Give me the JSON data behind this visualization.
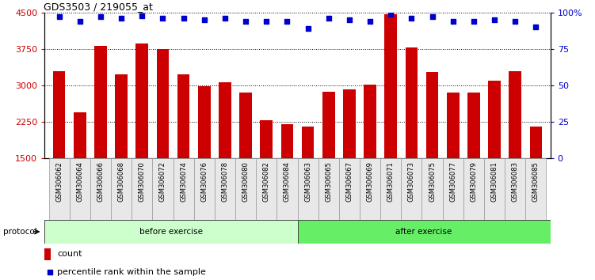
{
  "title": "GDS3503 / 219055_at",
  "categories": [
    "GSM306062",
    "GSM306064",
    "GSM306066",
    "GSM306068",
    "GSM306070",
    "GSM306072",
    "GSM306074",
    "GSM306076",
    "GSM306078",
    "GSM306080",
    "GSM306082",
    "GSM306084",
    "GSM306063",
    "GSM306065",
    "GSM306067",
    "GSM306069",
    "GSM306071",
    "GSM306073",
    "GSM306075",
    "GSM306077",
    "GSM306079",
    "GSM306081",
    "GSM306083",
    "GSM306085"
  ],
  "bar_values": [
    3300,
    2450,
    3820,
    3230,
    3870,
    3750,
    3230,
    2980,
    3070,
    2850,
    2280,
    2200,
    2150,
    2870,
    2920,
    3020,
    4470,
    3780,
    3280,
    2850,
    2850,
    3090,
    3290,
    2160
  ],
  "percentile_values": [
    97,
    94,
    97,
    96,
    98,
    96,
    96,
    95,
    96,
    94,
    94,
    94,
    89,
    96,
    95,
    94,
    99,
    96,
    97,
    94,
    94,
    95,
    94,
    90
  ],
  "bar_color": "#cc0000",
  "percentile_color": "#0000cc",
  "ylim_left": [
    1500,
    4500
  ],
  "ylim_right": [
    0,
    100
  ],
  "yticks_left": [
    1500,
    2250,
    3000,
    3750,
    4500
  ],
  "yticks_right": [
    0,
    25,
    50,
    75,
    100
  ],
  "before_count": 12,
  "after_count": 12,
  "group_before_label": "before exercise",
  "group_after_label": "after exercise",
  "protocol_label": "protocol",
  "legend_count_label": "count",
  "legend_percentile_label": "percentile rank within the sample",
  "before_color": "#ccffcc",
  "after_color": "#66ee66",
  "bar_width": 0.6,
  "bg_color": "#e8e8e8"
}
